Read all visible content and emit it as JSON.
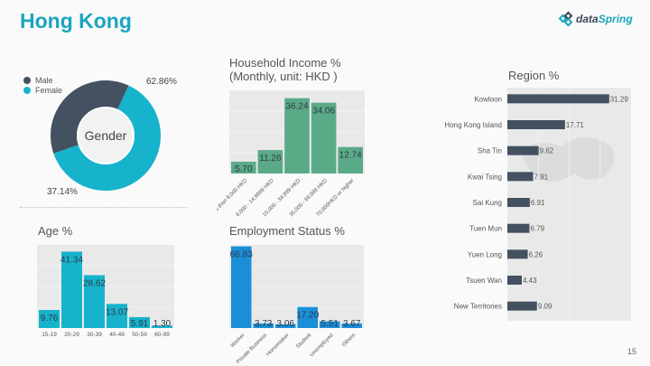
{
  "page": {
    "title": "Hong Kong",
    "page_number": "15"
  },
  "logo": {
    "part1": "data",
    "part2": "Spring"
  },
  "chart_data": [
    {
      "id": "gender",
      "type": "pie",
      "title": "Gender",
      "categories": [
        "Male",
        "Female"
      ],
      "values": [
        37.14,
        62.86
      ],
      "labels": [
        "37.14%",
        "62.86%"
      ],
      "colors": [
        "#435160",
        "#17b3cc"
      ],
      "legend": "top-left"
    },
    {
      "id": "income",
      "type": "bar",
      "title": "Household Income %\n(Monthly, unit: HKD )",
      "title_lines": [
        "Household Income %",
        "(Monthly, unit: HKD )"
      ],
      "categories": [
        "Less than 8,000 HKD",
        "8,000 - 14,9999 HKD",
        "15,000 - 34,999 HKD",
        "35,000 - 69,999 HKD",
        "70,000HKD or higher"
      ],
      "values": [
        5.7,
        11.26,
        36.24,
        34.06,
        12.74
      ],
      "labels": [
        "5.70",
        "11.26",
        "36.24",
        "34.06",
        "12.74"
      ],
      "color": "#5aaa88",
      "ylim": [
        0,
        40
      ]
    },
    {
      "id": "age",
      "type": "bar",
      "title": "Age %",
      "categories": [
        "15-19",
        "20-29",
        "30-39",
        "40-49",
        "50-59",
        "60-99"
      ],
      "values": [
        9.76,
        41.34,
        28.62,
        13.07,
        5.91,
        1.3
      ],
      "labels": [
        "9.76",
        "41.34",
        "28.62",
        "13.07",
        "5.91",
        "1.30"
      ],
      "color": "#17b3cc",
      "ylim": [
        0,
        45
      ]
    },
    {
      "id": "employment",
      "type": "bar",
      "title": "Employment Status %",
      "categories": [
        "Worker",
        "Private Business",
        "Homemaker",
        "Student",
        "Unemployed",
        "Others"
      ],
      "values": [
        66.83,
        3.73,
        3.06,
        17.2,
        5.51,
        3.67
      ],
      "labels": [
        "66.83",
        "3.73",
        "3.06",
        "17.20",
        "5.51",
        "3.67"
      ],
      "color": "#1a8fd8",
      "ylim": [
        0,
        68
      ]
    },
    {
      "id": "region",
      "type": "bar",
      "orientation": "horizontal",
      "title": "Region %",
      "categories": [
        "Kowloon",
        "Hong Kong Island",
        "Sha Tin",
        "Kwai Tsing",
        "Sai Kung",
        "Tuen Mun",
        "Yuen Long",
        "Tsuen Wan",
        "New Territories"
      ],
      "values": [
        31.29,
        17.71,
        9.62,
        7.91,
        6.91,
        6.79,
        6.26,
        4.43,
        9.09
      ],
      "labels": [
        "31.29",
        "17.71",
        "9.62",
        "7.91",
        "6.91",
        "6.79",
        "6.26",
        "4.43",
        "9.09"
      ],
      "color": "#435160",
      "xlim": [
        0,
        38
      ]
    }
  ]
}
